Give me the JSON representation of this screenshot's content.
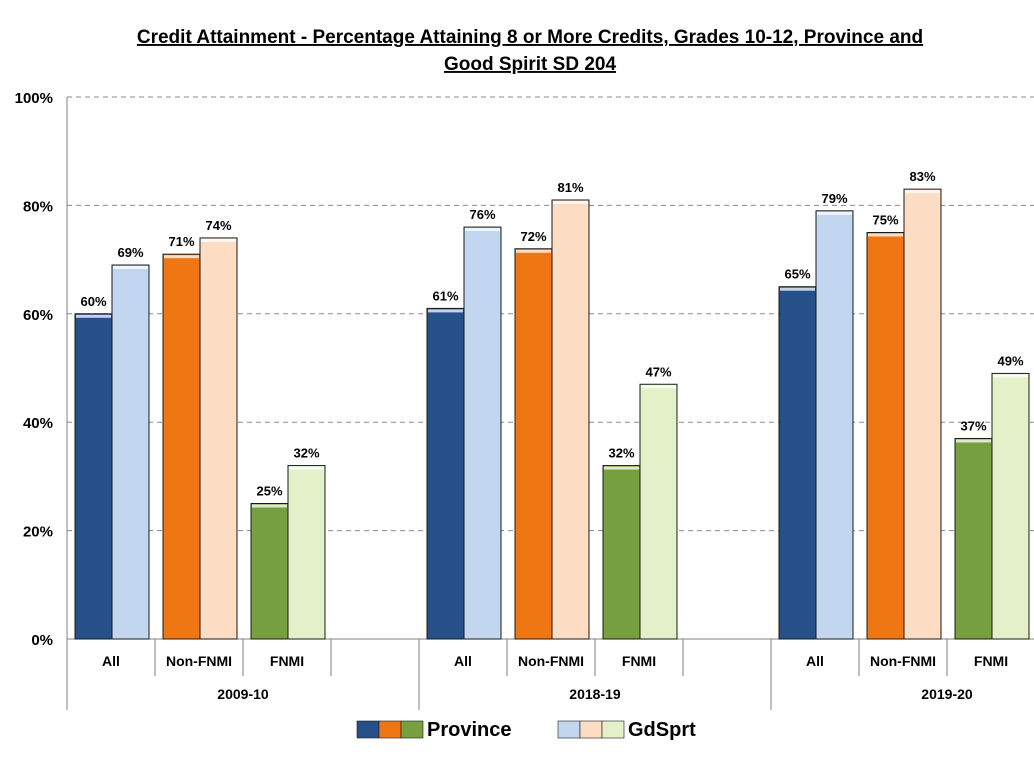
{
  "chart_data": {
    "type": "bar",
    "title_line1": "Credit Attainment - Percentage Attaining 8 or More Credits, Grades 10-12, Province and",
    "title_line2": "Good Spirit SD 204",
    "ylim": [
      0,
      100
    ],
    "yticks": [
      "0%",
      "20%",
      "40%",
      "60%",
      "80%",
      "100%"
    ],
    "ytick_values": [
      0,
      20,
      40,
      60,
      80,
      100
    ],
    "grid": true,
    "legend_position": "bottom",
    "legend": [
      {
        "label": "Province",
        "colors": [
          "#26508a",
          "#f07614",
          "#76a040"
        ]
      },
      {
        "label": "GdSprt",
        "colors": [
          "#c2d6ef",
          "#fcdcc2",
          "#e4f0c8"
        ]
      }
    ],
    "subgroup_colors": {
      "All": {
        "province": "#26508a",
        "gdsprt": "#c2d6ef"
      },
      "Non-FNMI": {
        "province": "#f07614",
        "gdsprt": "#fcdcc2"
      },
      "FNMI": {
        "province": "#76a040",
        "gdsprt": "#e4f0c8"
      }
    },
    "groups": [
      {
        "year": "2009-10",
        "subgroups": [
          {
            "label": "All",
            "province": 60,
            "gdsprt": 69,
            "province_label": "60%",
            "gdsprt_label": "69%"
          },
          {
            "label": "Non-FNMI",
            "province": 71,
            "gdsprt": 74,
            "province_label": "71%",
            "gdsprt_label": "74%"
          },
          {
            "label": "FNMI",
            "province": 25,
            "gdsprt": 32,
            "province_label": "25%",
            "gdsprt_label": "32%"
          }
        ]
      },
      {
        "year": "2018-19",
        "subgroups": [
          {
            "label": "All",
            "province": 61,
            "gdsprt": 76,
            "province_label": "61%",
            "gdsprt_label": "76%"
          },
          {
            "label": "Non-FNMI",
            "province": 72,
            "gdsprt": 81,
            "province_label": "72%",
            "gdsprt_label": "81%"
          },
          {
            "label": "FNMI",
            "province": 32,
            "gdsprt": 47,
            "province_label": "32%",
            "gdsprt_label": "47%"
          }
        ]
      },
      {
        "year": "2019-20",
        "subgroups": [
          {
            "label": "All",
            "province": 65,
            "gdsprt": 79,
            "province_label": "65%",
            "gdsprt_label": "79%"
          },
          {
            "label": "Non-FNMI",
            "province": 75,
            "gdsprt": 83,
            "province_label": "75%",
            "gdsprt_label": "83%"
          },
          {
            "label": "FNMI",
            "province": 37,
            "gdsprt": 49,
            "province_label": "37%",
            "gdsprt_label": "49%"
          }
        ]
      }
    ]
  }
}
